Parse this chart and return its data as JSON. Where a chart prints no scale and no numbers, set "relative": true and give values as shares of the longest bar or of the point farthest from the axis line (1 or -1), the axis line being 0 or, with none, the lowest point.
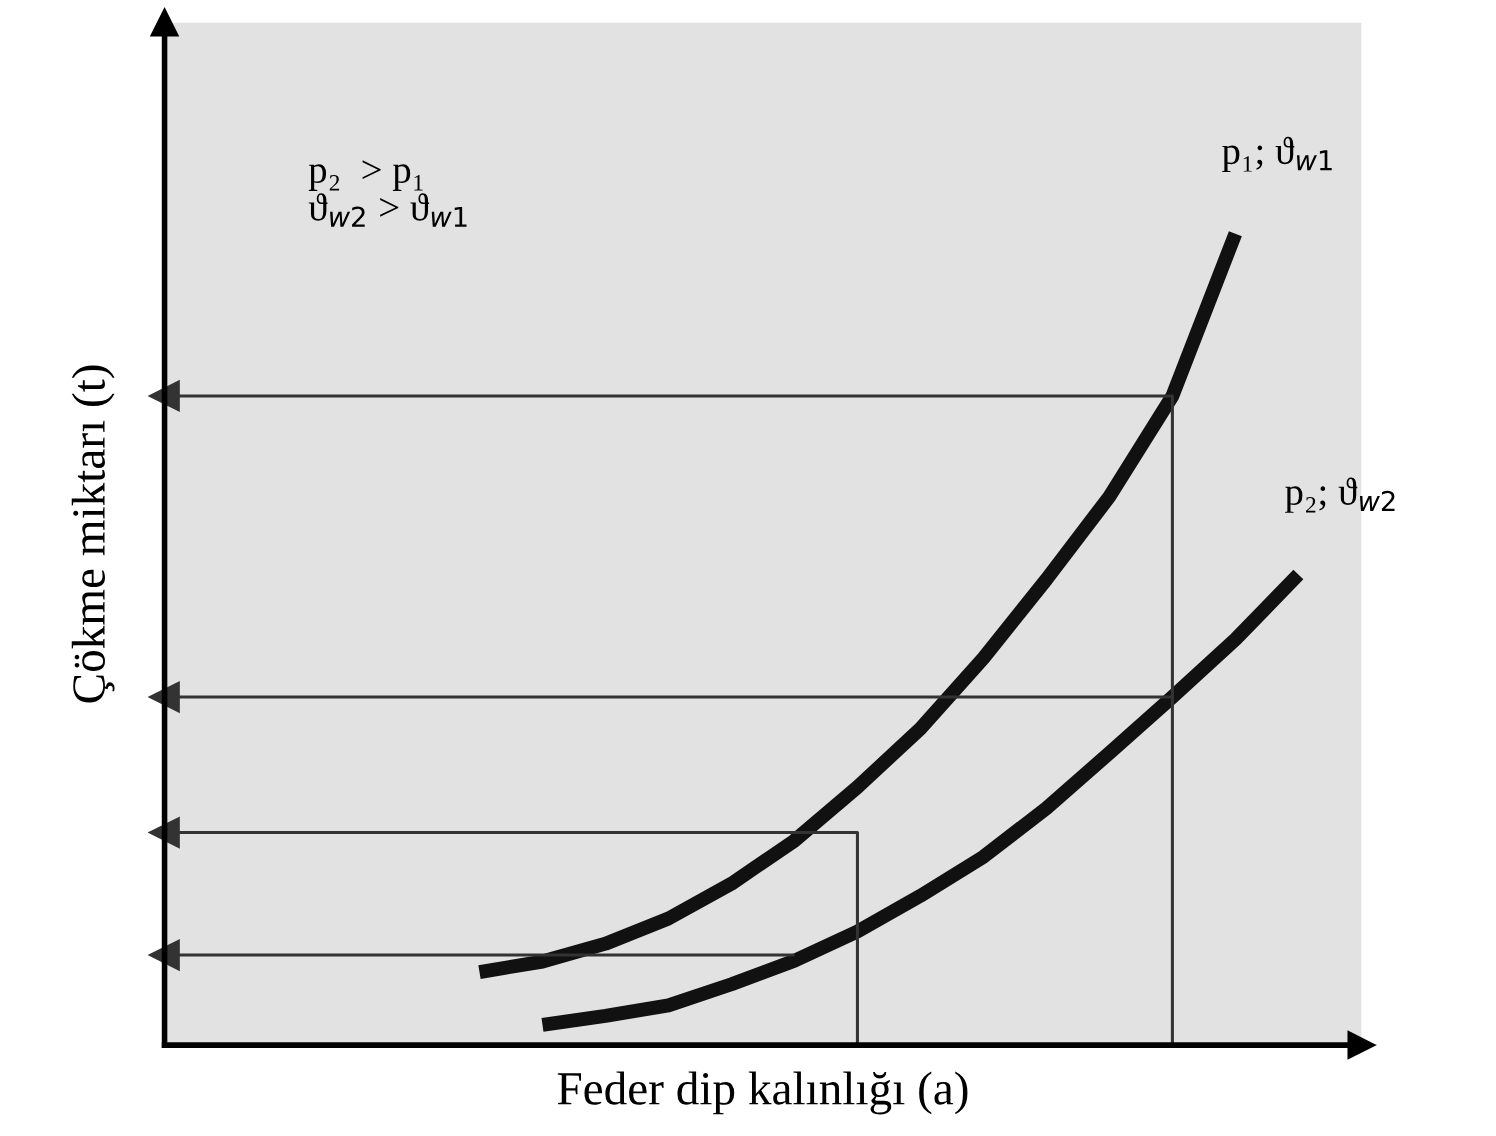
{
  "chart_data": {
    "type": "line",
    "relative": true,
    "xlabel": "Feder dip kalınlığı (a)",
    "ylabel": "Çökme miktarı (t)",
    "annotations": [
      "p₂  > p₁\nϑ$_{w2}$ > ϑ$_{w1}$"
    ],
    "categories": [
      null,
      null,
      null,
      null,
      null,
      null,
      null,
      null,
      null,
      null,
      null,
      null,
      null,
      null,
      null,
      null,
      null,
      null,
      null,
      null
    ],
    "series": [
      {
        "name": "p₁; ϑ$_{w1}$",
        "color": "#111111",
        "values": [
          null,
          null,
          null,
          null,
          null,
          0.09,
          0.103,
          0.125,
          0.156,
          0.199,
          0.252,
          0.318,
          0.39,
          0.477,
          0.574,
          0.676,
          0.8,
          1,
          null,
          null
        ]
      },
      {
        "name": "p₂; ϑ$_{w2}$",
        "color": "#111111",
        "values": [
          null,
          null,
          null,
          null,
          null,
          null,
          0.025,
          0.036,
          0.049,
          0.075,
          0.104,
          0.14,
          0.184,
          0.232,
          0.292,
          0.36,
          0.429,
          0.5,
          0.58,
          null
        ]
      },
      {
        "type": "step",
        "color": "#333333",
        "values": [
          0.8,
          0.8,
          0.8,
          0.8,
          0.8,
          0.8,
          0.8,
          0.8,
          0.8,
          0.8,
          0.8,
          0.8,
          0.8,
          0.8,
          0.8,
          0.8,
          0,
          null,
          null,
          null
        ]
      },
      {
        "color": "#333333",
        "values": [
          0.429,
          0.429,
          0.429,
          0.429,
          0.429,
          0.429,
          0.429,
          0.429,
          0.429,
          0.429,
          0.429,
          0.429,
          0.429,
          0.429,
          0.429,
          0.429,
          0.429,
          null,
          null,
          null
        ]
      },
      {
        "type": "step",
        "color": "#333333",
        "values": [
          0.262,
          0.262,
          0.262,
          0.262,
          0.262,
          0.262,
          0.262,
          0.262,
          0.262,
          0.262,
          0.262,
          0,
          null,
          null,
          null,
          null,
          null,
          null,
          null,
          null
        ]
      },
      {
        "color": "#333333",
        "values": [
          0.111,
          0.111,
          0.111,
          0.111,
          0.111,
          0.111,
          0.111,
          0.111,
          0.111,
          0.111,
          0.111,
          null,
          null,
          null,
          null,
          null,
          null,
          null,
          null,
          null
        ]
      }
    ]
  }
}
